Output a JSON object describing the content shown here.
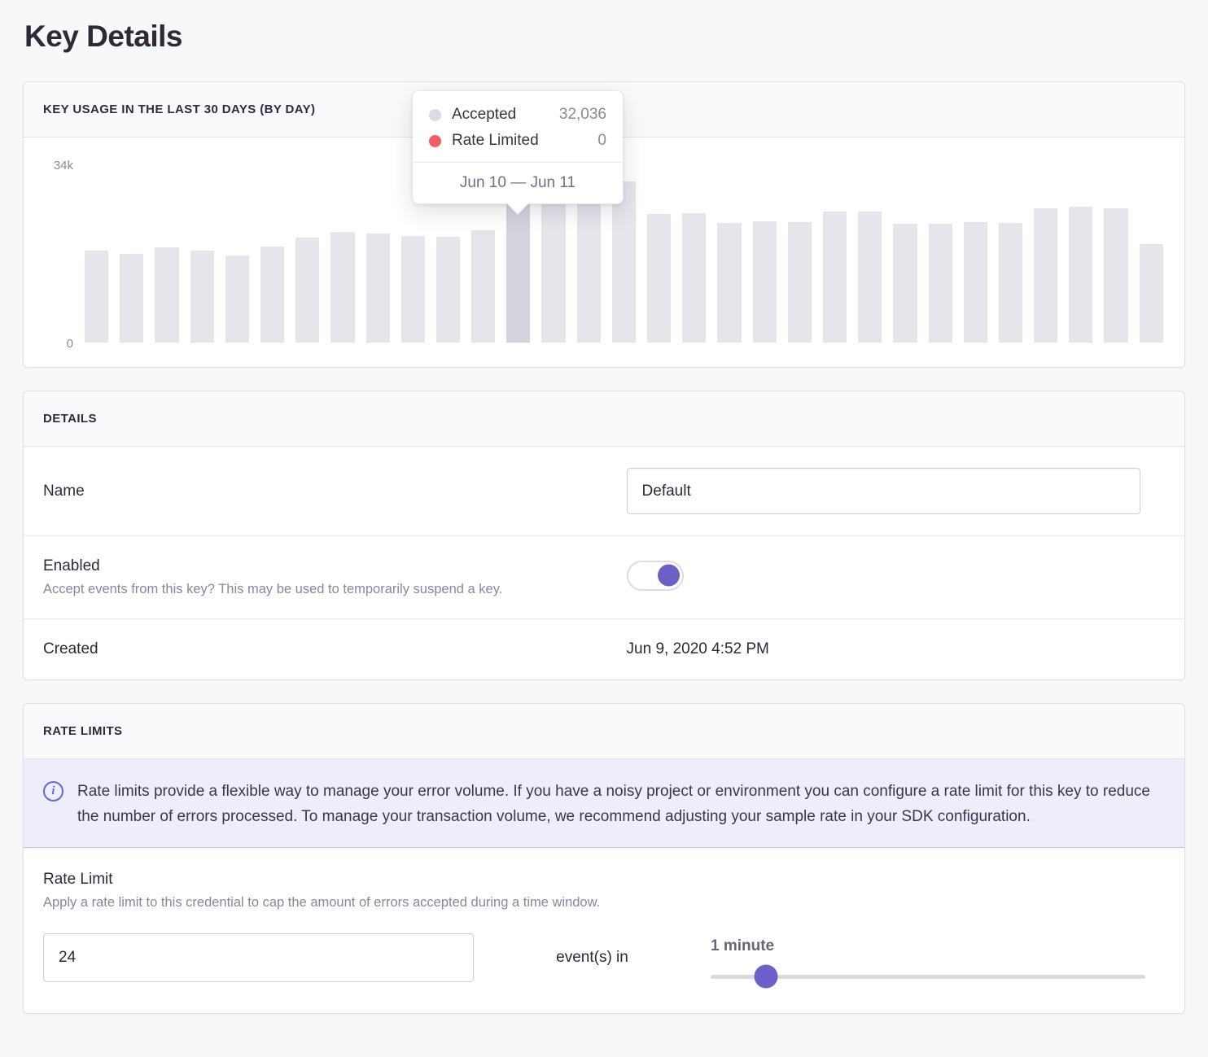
{
  "page": {
    "title": "Key Details"
  },
  "usage_panel": {
    "title": "KEY USAGE IN THE LAST 30 DAYS (BY DAY)",
    "y_axis_max_label": "34k",
    "y_axis_min_label": "0"
  },
  "chart_data": {
    "type": "bar",
    "title": "Key usage in the last 30 days (by day)",
    "xlabel": "day",
    "ylabel": "events",
    "ylim": [
      0,
      34000
    ],
    "y_ticks": [
      "0",
      "34k"
    ],
    "grid": false,
    "legend_position": "tooltip",
    "series": [
      {
        "name": "Accepted",
        "values": [
          17700,
          17100,
          18300,
          17700,
          16800,
          18500,
          20200,
          21300,
          21000,
          20500,
          20400,
          21600,
          32036,
          27000,
          28000,
          31000,
          24800,
          24900,
          23000,
          23300,
          23200,
          25200,
          25200,
          22900,
          22900,
          23200,
          23000,
          25800,
          26100,
          25800,
          19000
        ]
      },
      {
        "name": "Rate Limited",
        "values": [
          0,
          0,
          0,
          0,
          0,
          0,
          0,
          0,
          0,
          0,
          0,
          0,
          0,
          0,
          0,
          0,
          0,
          0,
          0,
          0,
          0,
          0,
          0,
          0,
          0,
          0,
          0,
          0,
          0,
          0,
          0
        ]
      }
    ],
    "hovered_index": 12,
    "hovered_label": "Jun 10 — Jun 11",
    "bar_color": "#e7e4ec",
    "bar_color_hover": "#d5d1dd"
  },
  "tooltip": {
    "rows": [
      {
        "label": "Accepted",
        "value": "32,036",
        "dot_color": "#dcdae3"
      },
      {
        "label": "Rate Limited",
        "value": "0",
        "dot_color": "#f15d62"
      }
    ],
    "footer": "Jun 10 — Jun 11"
  },
  "details_panel": {
    "title": "DETAILS",
    "name": {
      "label": "Name",
      "value": "Default"
    },
    "enabled": {
      "label": "Enabled",
      "help": "Accept events from this key? This may be used to temporarily suspend a key.",
      "state": "on"
    },
    "created": {
      "label": "Created",
      "value": "Jun 9, 2020 4:52 PM"
    }
  },
  "rate_limits_panel": {
    "title": "RATE LIMITS",
    "alert_text": "Rate limits provide a flexible way to manage your error volume. If you have a noisy project or environment you can configure a rate limit for this key to reduce the number of errors processed. To manage your transaction volume, we recommend adjusting your sample rate in your SDK configuration.",
    "rate_limit": {
      "label": "Rate Limit",
      "help": "Apply a rate limit to this credential to cap the amount of errors accepted during a time window.",
      "count_value": "24",
      "connector": "event(s) in",
      "window_label": "1 minute",
      "slider_percent": 12.7
    }
  },
  "colors": {
    "accent_purple": "#6c5fc7",
    "info_blue": "#5d6be0",
    "alert_bg": "#edeef9",
    "bar": "#e7e4ec",
    "bar_hover": "#d5d1dd",
    "rate_limited_red": "#f15d62",
    "accepted_gray": "#dcdae3"
  }
}
